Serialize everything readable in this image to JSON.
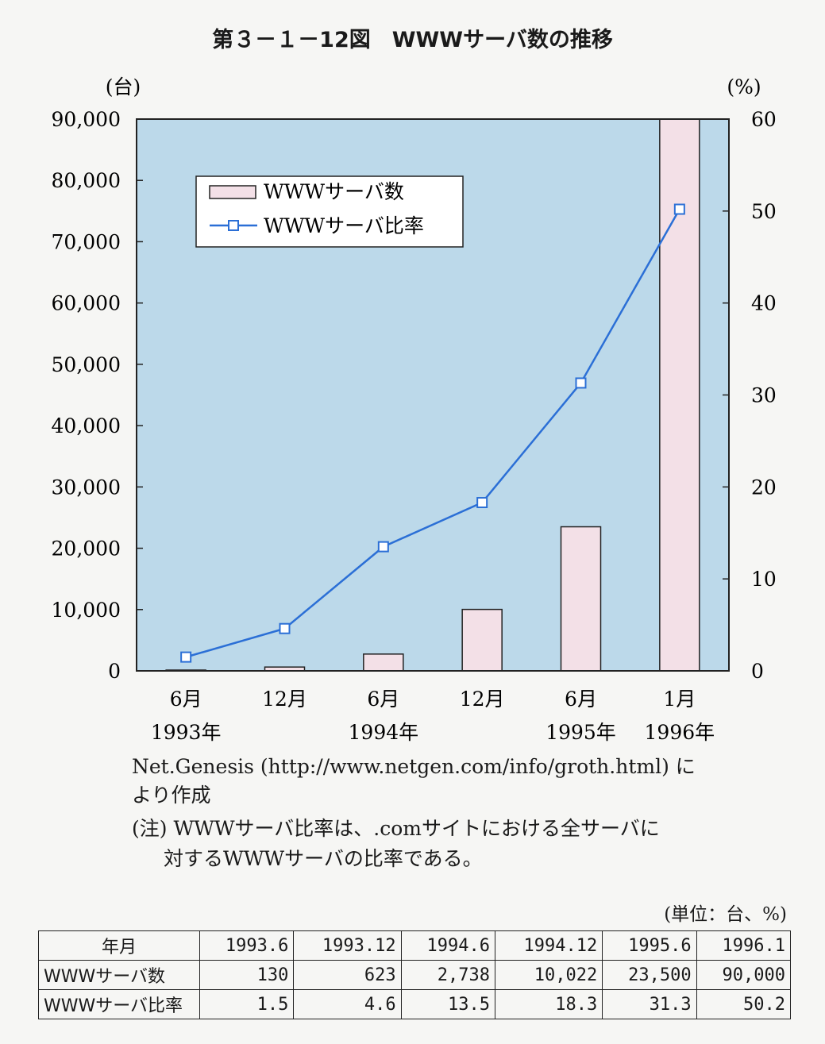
{
  "title": "第３－１－12図　WWWサーバ数の推移",
  "chart_data": {
    "type": "bar",
    "left_unit": "(台)",
    "right_unit": "(%)",
    "y_left_ticks": [
      "90,000",
      "80,000",
      "70,000",
      "60,000",
      "50,000",
      "40,000",
      "30,000",
      "20,000",
      "10,000",
      "0"
    ],
    "y_right_ticks": [
      "60",
      "50",
      "40",
      "30",
      "20",
      "10",
      "0"
    ],
    "ylim_left": [
      0,
      90000
    ],
    "ylim_right": [
      0,
      60
    ],
    "categories": [
      "6月",
      "12月",
      "6月",
      "12月",
      "6月",
      "1月"
    ],
    "year_labels": [
      "1993年",
      "1994年",
      "1995年",
      "1996年"
    ],
    "year_label_index": [
      0,
      2,
      4,
      5
    ],
    "series": [
      {
        "name": "WWWサーバ数",
        "type": "bar",
        "axis": "left",
        "values": [
          130,
          623,
          2738,
          10022,
          23500,
          90000
        ]
      },
      {
        "name": "WWWサーバ比率",
        "type": "line",
        "axis": "right",
        "values": [
          1.5,
          4.6,
          13.5,
          18.3,
          31.3,
          50.2
        ]
      }
    ],
    "legend_position": "top-left",
    "colors": {
      "plot_bg": "#bcd9ea",
      "bar_fill": "#f3e0e7",
      "line": "#2b6fd6",
      "marker_fill": "#ffffff"
    }
  },
  "source_line1": "Net.Genesis (http://www.netgen.com/info/groth.html) に",
  "source_line2": "より作成",
  "note_line1": "(注) WWWサーバ比率は、.comサイトにおける全サーバに",
  "note_line2": "対するWWWサーバの比率である。",
  "table": {
    "unit": "(単位：台、%)",
    "headers": [
      "年月",
      "1993.6",
      "1993.12",
      "1994.6",
      "1994.12",
      "1995.6",
      "1996.1"
    ],
    "rows": [
      {
        "label": "WWWサーバ数",
        "cells": [
          "130",
          "623",
          "2,738",
          "10,022",
          "23,500",
          "90,000"
        ]
      },
      {
        "label": "WWWサーバ比率",
        "cells": [
          "1.5",
          "4.6",
          "13.5",
          "18.3",
          "31.3",
          "50.2"
        ]
      }
    ]
  }
}
